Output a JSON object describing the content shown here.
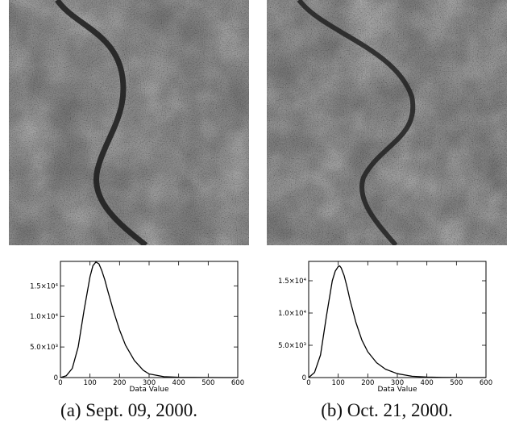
{
  "figures": [
    {
      "caption": "(a) Sept. 09, 2000."
    },
    {
      "caption": "(b) Oct. 21, 2000."
    }
  ],
  "chart_data": [
    {
      "type": "line",
      "xlabel": "Data Value",
      "ylabel": "",
      "xlim": [
        0,
        600
      ],
      "ylim": [
        0,
        19000
      ],
      "xticks": [
        0,
        100,
        200,
        300,
        400,
        500,
        600
      ],
      "yticks": [
        {
          "value": 0,
          "label": "0"
        },
        {
          "value": 5000,
          "label": "5.0×10³"
        },
        {
          "value": 10000,
          "label": "1.0×10⁴"
        },
        {
          "value": 15000,
          "label": "1.5×10⁴"
        }
      ],
      "x": [
        0,
        20,
        40,
        60,
        80,
        100,
        110,
        120,
        130,
        140,
        150,
        160,
        180,
        200,
        220,
        250,
        280,
        300,
        350,
        400,
        450,
        500,
        550,
        600
      ],
      "y": [
        0,
        300,
        1500,
        5000,
        11000,
        16500,
        18300,
        18900,
        18600,
        17500,
        16000,
        14200,
        10800,
        7800,
        5300,
        2800,
        1200,
        600,
        150,
        50,
        20,
        10,
        5,
        0
      ],
      "grid": false
    },
    {
      "type": "line",
      "xlabel": "Data Value",
      "ylabel": "",
      "xlim": [
        0,
        600
      ],
      "ylim": [
        0,
        18000
      ],
      "xticks": [
        0,
        100,
        200,
        300,
        400,
        500,
        600
      ],
      "yticks": [
        {
          "value": 0,
          "label": "0"
        },
        {
          "value": 5000,
          "label": "5.0×10³"
        },
        {
          "value": 10000,
          "label": "1.0×10⁴"
        },
        {
          "value": 15000,
          "label": "1.5×10⁴"
        }
      ],
      "x": [
        0,
        20,
        40,
        60,
        80,
        90,
        100,
        105,
        110,
        120,
        130,
        140,
        160,
        180,
        200,
        230,
        260,
        300,
        350,
        400,
        450,
        500,
        550,
        600
      ],
      "y": [
        0,
        800,
        3500,
        9500,
        15000,
        16500,
        17200,
        17300,
        17000,
        15800,
        14000,
        12000,
        8500,
        5800,
        4000,
        2300,
        1300,
        600,
        200,
        80,
        30,
        10,
        5,
        0
      ],
      "grid": false
    }
  ]
}
